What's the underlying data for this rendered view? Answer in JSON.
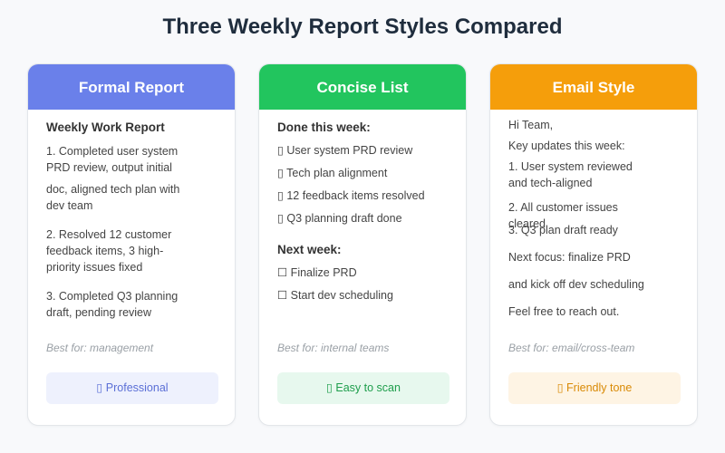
{
  "title": "Three Weekly Report Styles Compared",
  "cards": [
    {
      "header": "Formal Report",
      "sections": [
        {
          "heading": "Weekly Work Report",
          "items": [
            "1. Completed user system PRD review, output initial",
            "doc, aligned tech plan with dev team",
            "2. Resolved 12 customer feedback items, 3 high-priority issues fixed",
            "3. Completed Q3 planning draft, pending review"
          ]
        }
      ],
      "note": "Best for: management",
      "badge": "▯ Professional"
    },
    {
      "header": "Concise List",
      "sections": [
        {
          "heading": "Done this week:",
          "items": [
            "▯ User system PRD review",
            "▯ Tech plan alignment",
            "▯ 12 feedback items resolved",
            "▯ Q3 planning draft done"
          ]
        },
        {
          "heading": "Next week:",
          "items": [
            "☐ Finalize PRD",
            "☐ Start dev scheduling"
          ]
        }
      ],
      "note": "Best for: internal teams",
      "badge": "▯ Easy to scan"
    },
    {
      "header": "Email Style",
      "sections": [
        {
          "items": [
            "Hi Team,",
            "Key updates this week:",
            "1. User system reviewed and tech-aligned",
            "2. All customer issues cleared",
            "3. Q3 plan draft ready",
            "Next focus: finalize PRD",
            "and kick off dev scheduling",
            "Feel free to reach out."
          ]
        }
      ],
      "note": "Best for: email/cross-team",
      "badge": "▯ Friendly tone"
    }
  ]
}
